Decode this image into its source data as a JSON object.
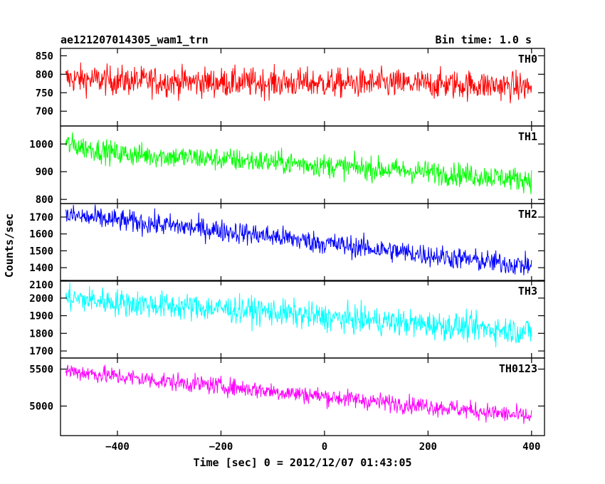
{
  "header": {
    "title": "ae121207014305_wam1_trn",
    "bin_time": "Bin time: 1.0 s"
  },
  "chart_data": {
    "type": "line",
    "title": "ae121207014305_wam1_trn",
    "subtitle": "Bin time: 1.0 s",
    "xlabel": "Time [sec] 0 = 2012/12/07 01:43:05",
    "ylabel": "Counts/sec",
    "xlim": [
      -510,
      425
    ],
    "x_ticks": [
      -400,
      -200,
      0,
      200,
      400
    ],
    "bin_time_s": 1.0,
    "x_range_data": [
      -500,
      400
    ],
    "panels": [
      {
        "name": "TH0",
        "color": "#ff0000",
        "ylim": [
          660,
          870
        ],
        "y_ticks": [
          700,
          750,
          800,
          850
        ],
        "series": {
          "name": "TH0",
          "trend_x": [
            -500,
            -400,
            -300,
            -200,
            -100,
            0,
            100,
            200,
            300,
            400
          ],
          "trend_y": [
            788,
            783,
            780,
            778,
            777,
            776,
            775,
            773,
            771,
            765
          ],
          "noise_amplitude": 36
        }
      },
      {
        "name": "TH1",
        "color": "#00ff00",
        "ylim": [
          785,
          1065
        ],
        "y_ticks": [
          800,
          900,
          1000
        ],
        "series": {
          "name": "TH1",
          "trend_x": [
            -500,
            -400,
            -300,
            -200,
            -100,
            0,
            100,
            200,
            300,
            400
          ],
          "trend_y": [
            1000,
            965,
            955,
            945,
            935,
            922,
            910,
            898,
            885,
            870
          ],
          "noise_amplitude": 38
        }
      },
      {
        "name": "TH2",
        "color": "#0000ff",
        "ylim": [
          1320,
          1780
        ],
        "y_ticks": [
          1400,
          1500,
          1600,
          1700
        ],
        "series": {
          "name": "TH2",
          "trend_x": [
            -500,
            -400,
            -300,
            -200,
            -100,
            0,
            100,
            200,
            300,
            400
          ],
          "trend_y": [
            1710,
            1680,
            1650,
            1620,
            1585,
            1545,
            1510,
            1475,
            1440,
            1410
          ],
          "noise_amplitude": 60
        }
      },
      {
        "name": "TH3",
        "color": "#00ffff",
        "ylim": [
          1660,
          2100
        ],
        "y_ticks": [
          1700,
          1800,
          1900,
          2000,
          2100
        ],
        "series": {
          "name": "TH3",
          "trend_x": [
            -500,
            -400,
            -300,
            -200,
            -100,
            0,
            100,
            200,
            300,
            400
          ],
          "trend_y": [
            2000,
            1975,
            1955,
            1940,
            1920,
            1890,
            1870,
            1850,
            1830,
            1810
          ],
          "noise_amplitude": 70
        }
      },
      {
        "name": "TH0123",
        "color": "#ff00ff",
        "ylim": [
          4600,
          5650
        ],
        "y_ticks": [
          5000,
          5500
        ],
        "series": {
          "name": "TH0123",
          "trend_x": [
            -500,
            -400,
            -300,
            -200,
            -100,
            0,
            100,
            200,
            300,
            400
          ],
          "trend_y": [
            5480,
            5400,
            5330,
            5270,
            5200,
            5130,
            5060,
            5000,
            4930,
            4850
          ],
          "noise_amplitude": 110
        }
      }
    ]
  }
}
